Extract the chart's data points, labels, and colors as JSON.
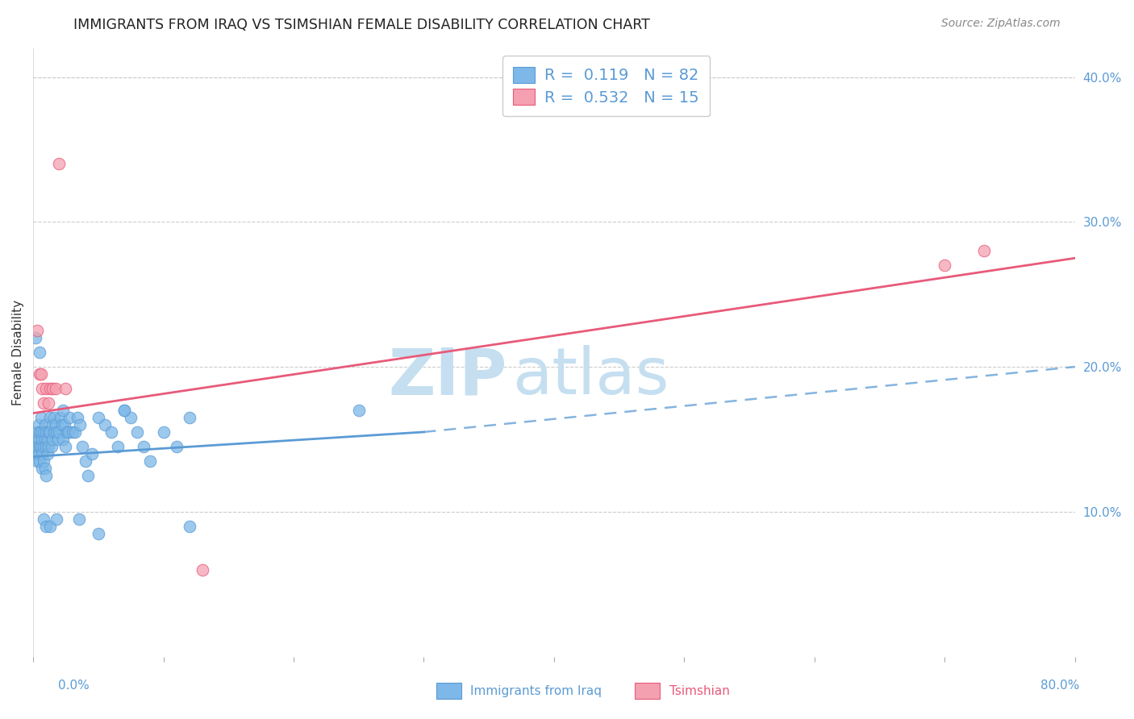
{
  "title": "IMMIGRANTS FROM IRAQ VS TSIMSHIAN FEMALE DISABILITY CORRELATION CHART",
  "source": "Source: ZipAtlas.com",
  "ylabel": "Female Disability",
  "legend_iraq": "Immigrants from Iraq",
  "legend_tsimshian": "Tsimshian",
  "color_iraq": "#7db8e8",
  "color_tsim": "#f4a0b0",
  "color_trendline_iraq": "#5b9bd5",
  "color_trendline_tsim": "#e85a7a",
  "color_axis_labels": "#5b9bd5",
  "watermark_zip": "ZIP",
  "watermark_atlas": "atlas",
  "watermark_color": "#c5dff0",
  "xlim": [
    0.0,
    0.8
  ],
  "ylim": [
    0.0,
    0.42
  ],
  "ytick_vals": [
    0.1,
    0.2,
    0.3,
    0.4
  ],
  "ytick_labels": [
    "10.0%",
    "20.0%",
    "30.0%",
    "40.0%"
  ],
  "grid_color": "#cccccc",
  "background_color": "#ffffff",
  "iraq_x": [
    0.001,
    0.002,
    0.002,
    0.003,
    0.003,
    0.003,
    0.004,
    0.004,
    0.004,
    0.005,
    0.005,
    0.005,
    0.006,
    0.006,
    0.006,
    0.007,
    0.007,
    0.007,
    0.008,
    0.008,
    0.008,
    0.009,
    0.009,
    0.009,
    0.01,
    0.01,
    0.01,
    0.011,
    0.011,
    0.012,
    0.012,
    0.013,
    0.013,
    0.014,
    0.015,
    0.015,
    0.016,
    0.016,
    0.017,
    0.018,
    0.019,
    0.02,
    0.021,
    0.022,
    0.023,
    0.024,
    0.025,
    0.026,
    0.027,
    0.028,
    0.03,
    0.032,
    0.034,
    0.036,
    0.038,
    0.04,
    0.042,
    0.045,
    0.05,
    0.055,
    0.06,
    0.065,
    0.07,
    0.075,
    0.08,
    0.085,
    0.09,
    0.1,
    0.11,
    0.12,
    0.002,
    0.005,
    0.008,
    0.01,
    0.013,
    0.018,
    0.023,
    0.035,
    0.05,
    0.07,
    0.12,
    0.25
  ],
  "iraq_y": [
    0.145,
    0.15,
    0.14,
    0.155,
    0.145,
    0.135,
    0.16,
    0.15,
    0.14,
    0.155,
    0.145,
    0.135,
    0.165,
    0.155,
    0.145,
    0.15,
    0.14,
    0.13,
    0.155,
    0.145,
    0.135,
    0.16,
    0.15,
    0.13,
    0.155,
    0.145,
    0.125,
    0.15,
    0.14,
    0.155,
    0.145,
    0.165,
    0.155,
    0.145,
    0.16,
    0.15,
    0.165,
    0.155,
    0.16,
    0.155,
    0.15,
    0.155,
    0.165,
    0.16,
    0.15,
    0.16,
    0.145,
    0.155,
    0.155,
    0.165,
    0.155,
    0.155,
    0.165,
    0.16,
    0.145,
    0.135,
    0.125,
    0.14,
    0.165,
    0.16,
    0.155,
    0.145,
    0.17,
    0.165,
    0.155,
    0.145,
    0.135,
    0.155,
    0.145,
    0.165,
    0.22,
    0.21,
    0.095,
    0.09,
    0.09,
    0.095,
    0.17,
    0.095,
    0.085,
    0.17,
    0.09,
    0.17
  ],
  "tsim_x": [
    0.003,
    0.005,
    0.006,
    0.007,
    0.008,
    0.01,
    0.012,
    0.013,
    0.015,
    0.017,
    0.02,
    0.025,
    0.13,
    0.7,
    0.73
  ],
  "tsim_y": [
    0.225,
    0.195,
    0.195,
    0.185,
    0.175,
    0.185,
    0.175,
    0.185,
    0.185,
    0.185,
    0.34,
    0.185,
    0.06,
    0.27,
    0.28
  ],
  "iraq_trend_x0": 0.0,
  "iraq_trend_y0": 0.138,
  "iraq_trend_x_solid_end": 0.3,
  "iraq_trend_y_solid_end": 0.155,
  "iraq_trend_x1": 0.8,
  "iraq_trend_y1": 0.2,
  "tsim_trend_x0": 0.0,
  "tsim_trend_y0": 0.168,
  "tsim_trend_x1": 0.8,
  "tsim_trend_y1": 0.275
}
